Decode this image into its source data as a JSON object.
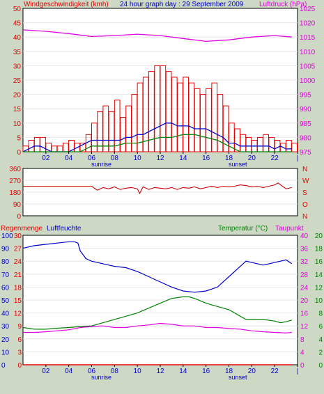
{
  "colors": {
    "background": "#cdd8c5",
    "plot_bg": "#ffffff",
    "wind": "#e80000",
    "gust_dark": "#ff0000",
    "wind_avg": "#0000cc",
    "wind_min": "#008000",
    "pressure": "#e000e0",
    "direction": "#cc0000",
    "humidity": "#0000cc",
    "temperature": "#008000",
    "dewpoint": "#e000e0",
    "rain": "#e80000"
  },
  "chart_data": [
    {
      "type": "line",
      "panel": "wind",
      "title": "24 hour graph day : 29 September 2009",
      "left_label": "Windgeschwindigkeit (kmh)",
      "right_label": "Luftdruck (hPa)",
      "x_ticks": [
        "02",
        "04",
        "06",
        "08",
        "10",
        "12",
        "14",
        "16",
        "18",
        "20",
        "22",
        "|"
      ],
      "x_sub_labels": [
        "sunrise",
        "sunset"
      ],
      "y_left_ticks": [
        "0",
        "5",
        "10",
        "15",
        "20",
        "25",
        "30",
        "35",
        "40",
        "45",
        "50"
      ],
      "y_right_ticks": [
        "975",
        "980",
        "985",
        "990",
        "995",
        "1000",
        "1005",
        "1010",
        "1015",
        "1020",
        "1025"
      ],
      "ylim_left": [
        0,
        50
      ],
      "ylim_right": [
        975,
        1025
      ],
      "series": [
        {
          "name": "Windgeschwindigkeit",
          "color_key": "wind",
          "style": "bars",
          "x": [
            0,
            0.5,
            1,
            1.5,
            2,
            2.5,
            3,
            3.5,
            4,
            4.5,
            5,
            5.5,
            6,
            6.5,
            7,
            7.5,
            8,
            8.5,
            9,
            9.5,
            10,
            10.5,
            11,
            11.5,
            12,
            12.5,
            13,
            13.5,
            14,
            14.5,
            15,
            15.5,
            16,
            16.5,
            17,
            17.5,
            18,
            18.5,
            19,
            19.5,
            20,
            20.5,
            21,
            21.5,
            22,
            22.5,
            23,
            23.5
          ],
          "values": [
            2,
            4,
            5,
            5,
            3,
            2,
            2,
            3,
            4,
            3,
            3,
            6,
            10,
            14,
            16,
            14,
            18,
            12,
            16,
            20,
            24,
            26,
            28,
            30,
            30,
            28,
            26,
            24,
            26,
            24,
            22,
            20,
            22,
            24,
            20,
            16,
            10,
            8,
            6,
            5,
            4,
            5,
            6,
            5,
            4,
            3,
            4,
            3
          ]
        },
        {
          "name": "Wind avg",
          "color_key": "wind_avg",
          "style": "line",
          "x": [
            0,
            0.5,
            1,
            1.5,
            2,
            2.5,
            3,
            3.5,
            4,
            4.5,
            5,
            5.5,
            6,
            6.5,
            7,
            7.5,
            8,
            8.5,
            9,
            9.5,
            10,
            10.5,
            11,
            11.5,
            12,
            12.5,
            13,
            13.5,
            14,
            14.5,
            15,
            15.5,
            16,
            16.5,
            17,
            17.5,
            18,
            18.5,
            19,
            19.5,
            20,
            20.5,
            21,
            21.5,
            22,
            22.5,
            23,
            23.5
          ],
          "values": [
            0,
            1,
            2,
            2,
            1,
            0,
            0,
            0,
            0,
            1,
            2,
            3,
            4,
            4,
            4,
            4,
            4,
            4,
            5,
            5,
            6,
            6,
            7,
            8,
            9,
            10,
            10,
            9,
            9,
            9,
            8,
            8,
            8,
            7,
            6,
            5,
            3,
            3,
            2,
            2,
            2,
            2,
            2,
            2,
            1,
            2,
            1,
            1
          ]
        },
        {
          "name": "Wind min",
          "color_key": "wind_min",
          "style": "line",
          "x": [
            0,
            1,
            2,
            3,
            4,
            5,
            5.5,
            6,
            7,
            8,
            9,
            10,
            11,
            12,
            13,
            14,
            15,
            16,
            17,
            18,
            19,
            20,
            21,
            22,
            23,
            23.5
          ],
          "values": [
            0,
            0,
            0,
            0,
            0,
            0,
            1,
            2,
            2,
            2,
            3,
            3,
            4,
            5,
            5,
            6,
            6,
            5,
            4,
            2,
            0,
            0,
            0,
            0,
            0,
            0
          ]
        },
        {
          "name": "Luftdruck",
          "color_key": "pressure",
          "axis": "right",
          "style": "line",
          "x": [
            0,
            2,
            4,
            6,
            8,
            10,
            12,
            14,
            16,
            18,
            20,
            22,
            23.5
          ],
          "values": [
            1017.5,
            1017,
            1016.2,
            1015.2,
            1015.5,
            1016,
            1015.5,
            1014.5,
            1013.5,
            1014,
            1015,
            1015.5,
            1015
          ]
        }
      ]
    },
    {
      "type": "line",
      "panel": "direction",
      "y_left_ticks": [
        "0",
        "90",
        "180",
        "270",
        "360"
      ],
      "y_right_ticks": [
        "N",
        "O",
        "S",
        "W",
        "N"
      ],
      "ylim": [
        0,
        360
      ],
      "series": [
        {
          "name": "Windrichtung",
          "color_key": "direction",
          "x": [
            0,
            2,
            4,
            6,
            6.5,
            7,
            7.5,
            8,
            8.5,
            9,
            9.5,
            10,
            10.2,
            10.5,
            11,
            11.5,
            12,
            12.5,
            13,
            13.5,
            14,
            14.5,
            15,
            15.5,
            16,
            16.5,
            17,
            17.5,
            18,
            18.5,
            19,
            19.5,
            20,
            20.5,
            21,
            21.5,
            22,
            22.3,
            22.6,
            23,
            23.5
          ],
          "values": [
            225,
            225,
            225,
            225,
            195,
            215,
            205,
            220,
            200,
            210,
            215,
            205,
            170,
            220,
            200,
            215,
            210,
            205,
            215,
            200,
            215,
            210,
            220,
            205,
            215,
            225,
            215,
            225,
            220,
            225,
            235,
            230,
            220,
            225,
            215,
            225,
            235,
            250,
            230,
            205,
            215
          ]
        }
      ]
    },
    {
      "type": "line",
      "panel": "climate",
      "left_label_1": "Regenmenge",
      "left_label_2": "Luftfeuchte",
      "right_label_1": "Temperatur (°C)",
      "right_label_2": "Taupunkt",
      "x_ticks": [
        "02",
        "04",
        "06",
        "08",
        "10",
        "12",
        "14",
        "16",
        "18",
        "20",
        "22",
        "|"
      ],
      "x_sub_labels": [
        "sunrise",
        "sunset"
      ],
      "y_left_ticks_outer": [
        "0",
        "10",
        "20",
        "30",
        "40",
        "50",
        "60",
        "70",
        "80",
        "90",
        "100"
      ],
      "y_left_ticks_inner": [
        "0",
        "3",
        "6",
        "9",
        "12",
        "15",
        "18",
        "21",
        "24",
        "27",
        "30"
      ],
      "y_right_ticks_inner": [
        "0",
        "4",
        "8",
        "12",
        "16",
        "20",
        "24",
        "28",
        "32",
        "36",
        "40"
      ],
      "y_right_ticks_outer": [
        "0",
        "2",
        "4",
        "6",
        "8",
        "10",
        "12",
        "14",
        "16",
        "18",
        "20"
      ],
      "ylim_humidity": [
        0,
        100
      ],
      "ylim_temperature": [
        0,
        40
      ],
      "series": [
        {
          "name": "Luftfeuchte",
          "color_key": "humidity",
          "axis": "humidity",
          "x": [
            0,
            0.5,
            1,
            2,
            3,
            4,
            4.5,
            4.8,
            5,
            5.5,
            6,
            7,
            8,
            9,
            10,
            11,
            12,
            13,
            14,
            15,
            16,
            17,
            18,
            19,
            19.5,
            20,
            21,
            22,
            22.5,
            23,
            23.5
          ],
          "values": [
            90,
            91,
            92,
            93,
            94,
            95,
            95,
            94,
            88,
            82,
            80,
            78,
            76,
            75,
            72,
            68,
            64,
            60,
            57,
            56,
            57,
            60,
            68,
            76,
            80,
            79,
            77,
            79,
            80,
            81,
            78
          ]
        },
        {
          "name": "Temperatur",
          "color_key": "temperature",
          "axis": "temperature",
          "x": [
            0,
            1,
            2,
            3,
            4,
            5,
            6,
            7,
            8,
            9,
            10,
            11,
            12,
            13,
            14,
            14.5,
            15,
            16,
            17,
            18,
            19,
            19.5,
            20,
            21,
            22,
            22.5,
            23,
            23.5
          ],
          "values": [
            11.5,
            11,
            11,
            11.3,
            11.5,
            11.8,
            12,
            13,
            14,
            15,
            16,
            17.5,
            19,
            20.5,
            21,
            21,
            20.5,
            19,
            18,
            17,
            15,
            14,
            14,
            14,
            13.5,
            13,
            13.3,
            13.8
          ]
        },
        {
          "name": "Taupunkt",
          "color_key": "dewpoint",
          "axis": "temperature",
          "x": [
            0,
            1,
            2,
            3,
            4,
            5,
            6,
            7,
            8,
            9,
            10,
            11,
            12,
            13,
            14,
            15,
            16,
            17,
            18,
            19,
            20,
            21,
            22,
            23,
            23.5
          ],
          "values": [
            10,
            10,
            10.2,
            10.5,
            10.8,
            11.5,
            11.8,
            12,
            11.5,
            11.5,
            12,
            12.3,
            12.8,
            12.5,
            12,
            12,
            11.5,
            11.5,
            11.2,
            11,
            10.5,
            10.2,
            10,
            9.8,
            10
          ]
        },
        {
          "name": "Regenmenge",
          "color_key": "rain",
          "axis": "humidity",
          "x": [
            0,
            23.5
          ],
          "values": [
            0,
            0
          ]
        }
      ]
    }
  ]
}
